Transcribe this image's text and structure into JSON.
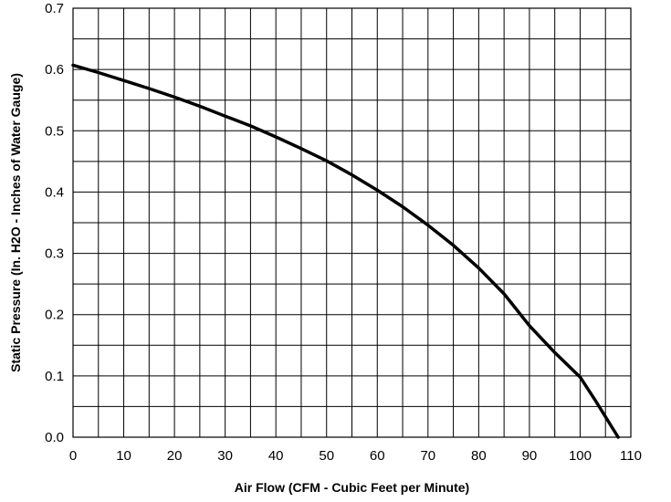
{
  "chart_data": {
    "type": "line",
    "title": "",
    "xlabel": "Air Flow (CFM - Cubic Feet per Minute)",
    "ylabel": "Static Pressure (In. H2O - Inches of Water Gauge)",
    "xlim": [
      0,
      110
    ],
    "ylim": [
      0,
      0.7
    ],
    "x_ticks": [
      "0",
      "10",
      "20",
      "30",
      "40",
      "50",
      "60",
      "70",
      "80",
      "90",
      "100",
      "110"
    ],
    "y_ticks": [
      "0.0",
      "0.1",
      "0.2",
      "0.3",
      "0.4",
      "0.5",
      "0.6",
      "0.7"
    ],
    "x_minor_step": 5,
    "y_minor_step": 0.05,
    "grid": true,
    "series": [
      {
        "color": "#000000",
        "x": [
          0,
          5,
          10,
          15,
          20,
          25,
          30,
          35,
          40,
          45,
          50,
          55,
          60,
          65,
          70,
          75,
          80,
          85,
          90,
          95,
          100,
          103,
          107.5
        ],
        "y": [
          0.607,
          0.595,
          0.582,
          0.569,
          0.555,
          0.54,
          0.524,
          0.508,
          0.49,
          0.471,
          0.451,
          0.428,
          0.403,
          0.376,
          0.346,
          0.313,
          0.276,
          0.234,
          0.182,
          0.138,
          0.098,
          0.06,
          0.0
        ]
      }
    ]
  }
}
